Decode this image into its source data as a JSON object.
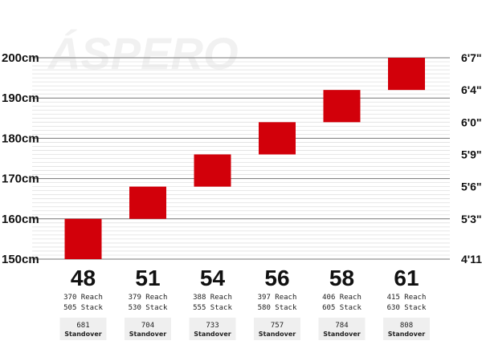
{
  "watermark": "ÁSPERO",
  "chart_data": {
    "type": "bar",
    "categories": [
      "48",
      "51",
      "54",
      "56",
      "58",
      "61"
    ],
    "series": [
      {
        "low": [
          150,
          160,
          168,
          176,
          184,
          192
        ],
        "high": [
          160,
          168,
          176,
          184,
          192,
          200
        ]
      }
    ],
    "reach": [
      "370 Reach",
      "379 Reach",
      "388 Reach",
      "397 Reach",
      "406 Reach",
      "415 Reach"
    ],
    "stack": [
      "505 Stack",
      "530 Stack",
      "555 Stack",
      "580 Stack",
      "605 Stack",
      "630 Stack"
    ],
    "standover": [
      "681",
      "704",
      "733",
      "757",
      "784",
      "808"
    ],
    "standover_label": "Standover",
    "y_ticks_left": [
      "150cm",
      "160cm",
      "170cm",
      "180cm",
      "190cm",
      "200cm"
    ],
    "y_ticks_left_values": [
      150,
      160,
      170,
      180,
      190,
      200
    ],
    "y_ticks_right": [
      "4'11\"",
      "5'3\"",
      "5'6\"",
      "5'9\"",
      "6'0\"",
      "6'4\"",
      "6'7\""
    ],
    "y_ticks_right_values": [
      150,
      160,
      168,
      176,
      184,
      192,
      200
    ],
    "ylim": [
      150,
      200
    ],
    "grid": true,
    "colors": {
      "bar": "#d2000a",
      "major_grid": "#777777",
      "minor_grid": "#e0e0e0",
      "standover_box": "#efefef"
    }
  }
}
